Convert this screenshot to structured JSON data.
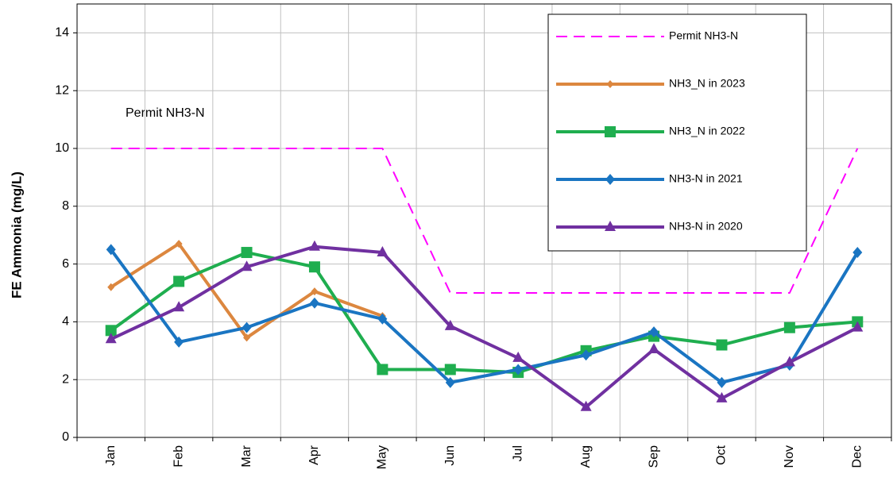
{
  "chart_data": {
    "type": "line",
    "y_label": "FE Ammonia (mg/L)",
    "annotation": "Permit NH3-N",
    "categories": [
      "Jan",
      "Feb",
      "Mar",
      "Apr",
      "May",
      "Jun",
      "Jul",
      "Aug",
      "Sep",
      "Oct",
      "Nov",
      "Dec"
    ],
    "series": [
      {
        "name": "Permit NH3-N",
        "color": "#ff00ff",
        "dash": true,
        "values": [
          10,
          10,
          10,
          10,
          10,
          5,
          5,
          5,
          5,
          5,
          5,
          10
        ]
      },
      {
        "name": "NH3_N in 2023",
        "color": "#dc873f",
        "marker": "small-diamond",
        "values": [
          5.2,
          6.7,
          3.45,
          5.05,
          4.2,
          null,
          null,
          null,
          null,
          null,
          null,
          null
        ]
      },
      {
        "name": "NH3_N in 2022",
        "color": "#1fae4f",
        "marker": "square",
        "values": [
          3.7,
          5.4,
          6.4,
          5.9,
          2.35,
          2.35,
          2.25,
          3.0,
          3.5,
          3.2,
          3.8,
          4.0
        ]
      },
      {
        "name": "NH3-N in 2021",
        "color": "#1a75c2",
        "marker": "diamond",
        "values": [
          6.5,
          3.3,
          3.8,
          4.65,
          4.1,
          1.9,
          2.35,
          2.85,
          3.65,
          1.9,
          2.5,
          6.4
        ]
      },
      {
        "name": "NH3-N in 2020",
        "color": "#7030a0",
        "marker": "triangle",
        "values": [
          3.4,
          4.5,
          5.9,
          6.6,
          6.4,
          3.85,
          2.75,
          1.05,
          3.05,
          1.35,
          2.6,
          3.8
        ]
      }
    ],
    "ylim": [
      0,
      15
    ],
    "yticks": [
      0,
      2,
      4,
      6,
      8,
      10,
      12,
      14
    ],
    "grid": true
  }
}
